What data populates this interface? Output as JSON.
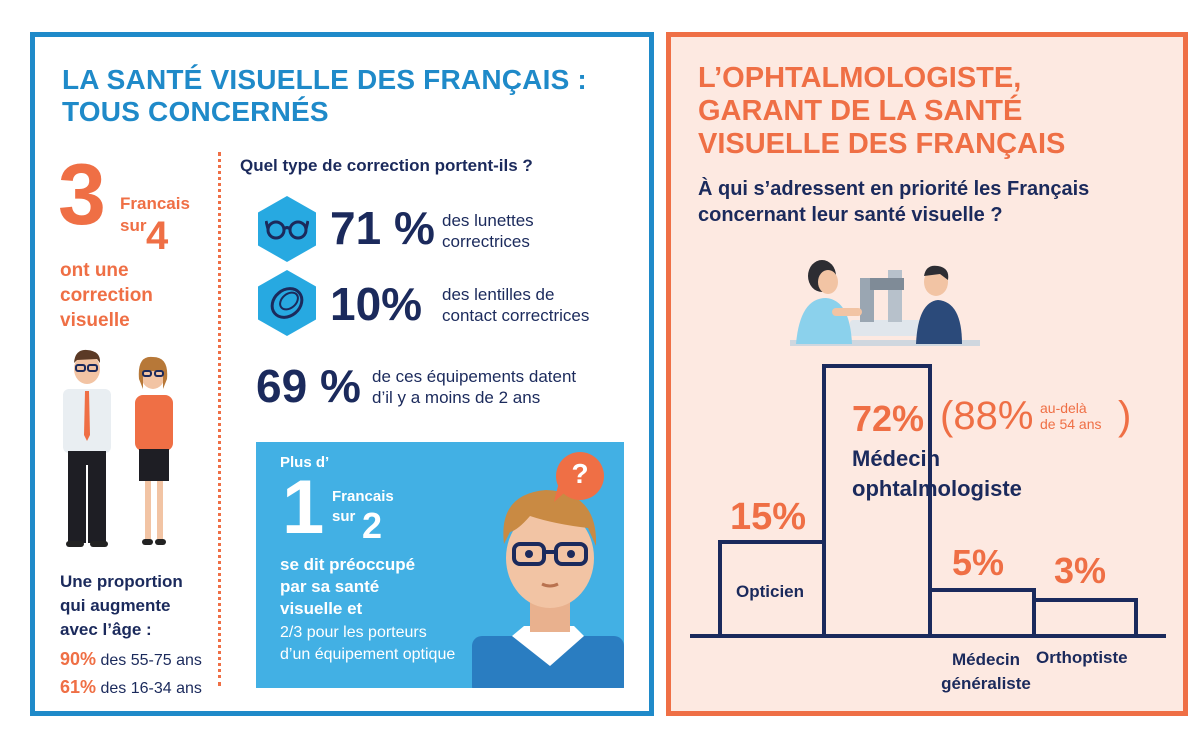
{
  "left": {
    "title_line1": "LA SANTÉ VISUELLE DES FRANÇAIS :",
    "title_line2": "TOUS CONCERNÉS",
    "stat_big_number": "3",
    "stat_francais": "Francais",
    "stat_sur": "sur",
    "stat_denominator": "4",
    "stat_caption_1": "ont une",
    "stat_caption_2": "correction",
    "stat_caption_3": "visuelle",
    "proportion_1": "Une proportion",
    "proportion_2": "qui augmente",
    "proportion_3": "avec l’âge :",
    "age_rows": [
      {
        "pct": "90%",
        "label": "des 55-75 ans"
      },
      {
        "pct": "61%",
        "label": "des 16-34 ans"
      }
    ],
    "question": "Quel type de correction portent-ils ?",
    "corrections": [
      {
        "pct": "71 %",
        "line1": "des lunettes",
        "line2": "correctrices",
        "icon": "glasses-icon"
      },
      {
        "pct": "10%",
        "line1": "des lentilles de",
        "line2": "contact correctrices",
        "icon": "contact-lens-icon"
      }
    ],
    "equip_pct": "69 %",
    "equip_line1": "de ces équipements datent",
    "equip_line2": "d’il y a moins de 2 ans",
    "box": {
      "plus": "Plus d’",
      "number": "1",
      "francais": "Francais",
      "sur": "sur",
      "denominator": "2",
      "line1": "se dit préoccupé",
      "line2": "par sa santé",
      "line3": "visuelle et",
      "line4": "2/3 pour les porteurs",
      "line5": "d’un équipement optique",
      "bubble": "?"
    }
  },
  "right": {
    "title_line1": "L’OPHTALMOLOGISTE,",
    "title_line2": "GARANT DE LA SANTÉ",
    "title_line3": "VISUELLE DES FRANÇAIS",
    "subtitle_line1": "À qui s’adressent en priorité les Français",
    "subtitle_line2": "concernant leur santé visuelle ?",
    "podium": [
      {
        "pct": "15%",
        "label": "Opticien"
      },
      {
        "pct": "72%",
        "extra_open": "(88%",
        "extra_note1": "au-delà",
        "extra_note2": "de 54 ans",
        "extra_close": ")",
        "label1": "Médecin",
        "label2": "ophtalmologiste"
      },
      {
        "pct": "5%",
        "label1": "Médecin",
        "label2": "généraliste"
      },
      {
        "pct": "3%",
        "label": "Orthoptiste"
      }
    ]
  },
  "colors": {
    "blue": "#1f8ac9",
    "orange": "#ef6f45",
    "navy": "#1b2a5c",
    "light_blue": "#42b0e4",
    "peach": "#fde9e1"
  }
}
